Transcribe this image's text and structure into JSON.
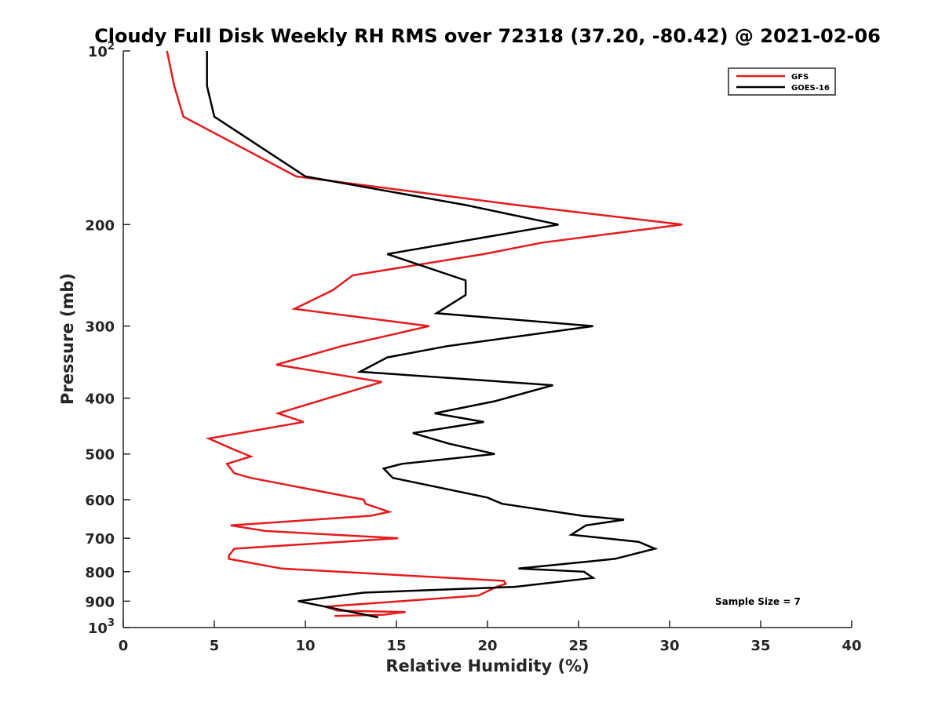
{
  "chart_data": {
    "type": "line",
    "title": "Cloudy Full Disk Weekly RH RMS over 72318 (37.20, -80.42) @ 2021-02-06",
    "xlabel": "Relative Humidity (%)",
    "ylabel": "Pressure (mb)",
    "xlim": [
      0,
      40
    ],
    "ylim": [
      100,
      1000
    ],
    "yscale": "log",
    "y_reversed": true,
    "grid": false,
    "legend_position": "top-right",
    "xticks": [
      0,
      5,
      10,
      15,
      20,
      25,
      30,
      35,
      40
    ],
    "yticks": [
      100,
      200,
      300,
      400,
      500,
      600,
      700,
      800,
      900,
      1000
    ],
    "ytick_labels": [
      {
        "value": 100,
        "base": "10",
        "exp": "2"
      },
      {
        "value": 200,
        "text": "200"
      },
      {
        "value": 300,
        "text": "300"
      },
      {
        "value": 400,
        "text": "400"
      },
      {
        "value": 500,
        "text": "500"
      },
      {
        "value": 600,
        "text": "600"
      },
      {
        "value": 700,
        "text": "700"
      },
      {
        "value": 800,
        "text": "800"
      },
      {
        "value": 900,
        "text": "900"
      },
      {
        "value": 1000,
        "base": "10",
        "exp": "3"
      }
    ],
    "series": [
      {
        "name": "GFS",
        "color": "#e41a1c",
        "points": [
          [
            2.4,
            100
          ],
          [
            2.8,
            115
          ],
          [
            3.3,
            130
          ],
          [
            9.5,
            165
          ],
          [
            21.6,
            185
          ],
          [
            30.7,
            200
          ],
          [
            23.0,
            215
          ],
          [
            19.8,
            225
          ],
          [
            12.6,
            245
          ],
          [
            11.5,
            260
          ],
          [
            9.4,
            280
          ],
          [
            16.8,
            300
          ],
          [
            12.0,
            325
          ],
          [
            8.4,
            350
          ],
          [
            14.2,
            375
          ],
          [
            8.5,
            425
          ],
          [
            9.9,
            440
          ],
          [
            4.7,
            470
          ],
          [
            6.0,
            490
          ],
          [
            7.0,
            505
          ],
          [
            5.7,
            520
          ],
          [
            6.1,
            540
          ],
          [
            7.0,
            550
          ],
          [
            13.2,
            600
          ],
          [
            13.3,
            610
          ],
          [
            14.6,
            630
          ],
          [
            13.6,
            640
          ],
          [
            5.9,
            665
          ],
          [
            7.8,
            680
          ],
          [
            15.1,
            700
          ],
          [
            6.1,
            730
          ],
          [
            5.8,
            750
          ],
          [
            5.8,
            760
          ],
          [
            8.7,
            790
          ],
          [
            20.9,
            830
          ],
          [
            21.0,
            840
          ],
          [
            20.5,
            850
          ],
          [
            19.5,
            880
          ],
          [
            11.1,
            920
          ],
          [
            11.8,
            935
          ],
          [
            15.5,
            940
          ],
          [
            14.3,
            950
          ],
          [
            11.6,
            955
          ]
        ]
      },
      {
        "name": "GOES-16",
        "color": "#000000",
        "points": [
          [
            4.6,
            100
          ],
          [
            4.6,
            115
          ],
          [
            5.0,
            130
          ],
          [
            10.0,
            165
          ],
          [
            18.8,
            185
          ],
          [
            23.9,
            200
          ],
          [
            14.5,
            225
          ],
          [
            18.8,
            250
          ],
          [
            18.8,
            265
          ],
          [
            17.2,
            285
          ],
          [
            25.8,
            300
          ],
          [
            17.8,
            325
          ],
          [
            14.5,
            340
          ],
          [
            13.0,
            360
          ],
          [
            23.6,
            380
          ],
          [
            20.4,
            405
          ],
          [
            17.1,
            425
          ],
          [
            19.8,
            440
          ],
          [
            15.9,
            460
          ],
          [
            17.9,
            480
          ],
          [
            20.4,
            500
          ],
          [
            15.3,
            520
          ],
          [
            14.3,
            530
          ],
          [
            14.8,
            550
          ],
          [
            20.0,
            595
          ],
          [
            20.8,
            610
          ],
          [
            25.2,
            640
          ],
          [
            27.5,
            650
          ],
          [
            25.4,
            665
          ],
          [
            24.6,
            690
          ],
          [
            28.3,
            710
          ],
          [
            29.2,
            730
          ],
          [
            27.0,
            760
          ],
          [
            21.7,
            790
          ],
          [
            25.3,
            800
          ],
          [
            25.8,
            820
          ],
          [
            21.5,
            850
          ],
          [
            13.2,
            870
          ],
          [
            9.6,
            900
          ],
          [
            14.0,
            960
          ]
        ]
      }
    ],
    "annotation": "Sample Size = 7"
  }
}
